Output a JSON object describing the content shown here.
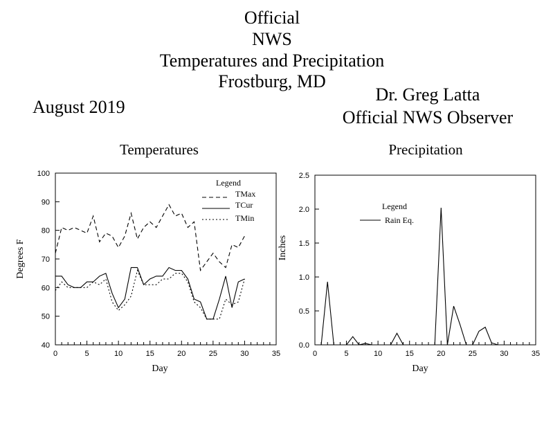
{
  "header": {
    "title_lines": [
      "Official",
      "NWS",
      "Temperatures and Precipitation",
      "Frostburg, MD"
    ],
    "period": "August 2019",
    "observer_name": "Dr. Greg Latta",
    "observer_role": "Official NWS Observer"
  },
  "chart_data": [
    {
      "type": "line",
      "title": "Temperatures",
      "xlabel": "Day",
      "ylabel": "Degrees F",
      "xlim": [
        0,
        35
      ],
      "ylim": [
        40,
        100
      ],
      "xticks": [
        0,
        5,
        10,
        15,
        20,
        25,
        30,
        35
      ],
      "yticks": [
        40,
        50,
        60,
        70,
        80,
        90,
        100
      ],
      "legend": {
        "title": "Legend",
        "position": "top-right"
      },
      "x": [
        0,
        1,
        2,
        3,
        4,
        5,
        6,
        7,
        8,
        9,
        10,
        11,
        12,
        13,
        14,
        15,
        16,
        17,
        18,
        19,
        20,
        21,
        22,
        23,
        24,
        25,
        26,
        27,
        28,
        29,
        30
      ],
      "series": [
        {
          "name": "TMax",
          "style": "dashed",
          "values": [
            72,
            81,
            80,
            81,
            80,
            79,
            85,
            76,
            79,
            78,
            74,
            78,
            86,
            77,
            81,
            83,
            81,
            85,
            89,
            85,
            86,
            81,
            83,
            66,
            69,
            72,
            69,
            67,
            75,
            74,
            78
          ]
        },
        {
          "name": "TCur",
          "style": "solid",
          "values": [
            64,
            64,
            61,
            60,
            60,
            62,
            62,
            64,
            65,
            58,
            53,
            56,
            67,
            67,
            61,
            63,
            64,
            64,
            67,
            66,
            66,
            63,
            56,
            55,
            49,
            49,
            56,
            64,
            53,
            62,
            63
          ]
        },
        {
          "name": "TMin",
          "style": "dotted",
          "values": [
            59,
            62,
            60,
            60,
            60,
            60,
            62,
            61,
            63,
            55,
            52,
            54,
            57,
            66,
            61,
            61,
            61,
            63,
            63,
            65,
            65,
            62,
            55,
            53,
            49,
            49,
            49,
            56,
            54,
            55,
            63
          ]
        }
      ]
    },
    {
      "type": "line",
      "title": "Precipitation",
      "xlabel": "Day",
      "ylabel": "Inches",
      "xlim": [
        0,
        35
      ],
      "ylim": [
        0,
        2.5
      ],
      "xticks": [
        0,
        5,
        10,
        15,
        20,
        25,
        30,
        35
      ],
      "yticks": [
        "0.0",
        "0.5",
        "1.0",
        "1.5",
        "2.0",
        "2.5"
      ],
      "legend": {
        "title": "Legend",
        "position": "upper-left"
      },
      "x": [
        0,
        1,
        2,
        3,
        4,
        5,
        6,
        7,
        8,
        9,
        10,
        11,
        12,
        13,
        14,
        15,
        16,
        17,
        18,
        19,
        20,
        21,
        22,
        23,
        24,
        25,
        26,
        27,
        28,
        29,
        30
      ],
      "series": [
        {
          "name": "Rain Eq.",
          "style": "solid",
          "values": [
            0,
            0,
            0.93,
            0,
            0,
            0,
            0.12,
            0,
            0.02,
            0,
            0,
            0,
            0,
            0.17,
            0,
            0,
            0,
            0,
            0,
            0,
            2.02,
            0,
            0.57,
            0.3,
            0,
            0,
            0.2,
            0.26,
            0.03,
            0,
            0
          ]
        }
      ]
    }
  ]
}
